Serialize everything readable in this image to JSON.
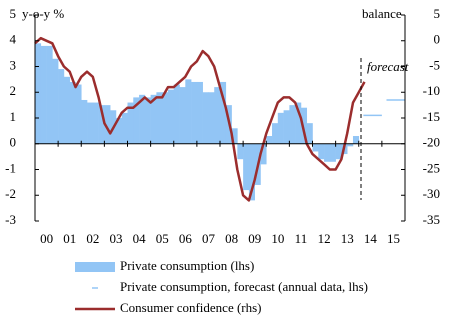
{
  "chart_data": {
    "type": "combo",
    "y_label": "y-o-y %",
    "y2_label": "balance",
    "annotation": "forecast",
    "xlim": [
      2000,
      2016
    ],
    "xticks": [
      {
        "value": 2000,
        "label": "00"
      },
      {
        "value": 2001,
        "label": "01"
      },
      {
        "value": 2002,
        "label": "02"
      },
      {
        "value": 2003,
        "label": "03"
      },
      {
        "value": 2004,
        "label": "04"
      },
      {
        "value": 2005,
        "label": "05"
      },
      {
        "value": 2006,
        "label": "06"
      },
      {
        "value": 2007,
        "label": "07"
      },
      {
        "value": 2008,
        "label": "08"
      },
      {
        "value": 2009,
        "label": "09"
      },
      {
        "value": 2010,
        "label": "10"
      },
      {
        "value": 2011,
        "label": "11"
      },
      {
        "value": 2012,
        "label": "12"
      },
      {
        "value": 2013,
        "label": "13"
      },
      {
        "value": 2014,
        "label": "14"
      },
      {
        "value": 2015,
        "label": "15"
      }
    ],
    "ylim": [
      -3,
      5
    ],
    "yticks": [
      -3,
      -2,
      -1,
      0,
      1,
      2,
      3,
      4,
      5
    ],
    "y2lim": [
      -35,
      5
    ],
    "y2ticks": [
      -35,
      -30,
      -25,
      -20,
      -15,
      -10,
      -5,
      0,
      5
    ],
    "series": [
      {
        "name": "Private consumption (lhs)",
        "type": "bar",
        "color": "#92c5f5",
        "x": [
          2000,
          2000.25,
          2000.5,
          2000.75,
          2001,
          2001.25,
          2001.5,
          2001.75,
          2002,
          2002.25,
          2002.5,
          2002.75,
          2003,
          2003.25,
          2003.5,
          2003.75,
          2004,
          2004.25,
          2004.5,
          2004.75,
          2005,
          2005.25,
          2005.5,
          2005.75,
          2006,
          2006.25,
          2006.5,
          2006.75,
          2007,
          2007.25,
          2007.5,
          2007.75,
          2008,
          2008.25,
          2008.5,
          2008.75,
          2009,
          2009.25,
          2009.5,
          2009.75,
          2010,
          2010.25,
          2010.5,
          2010.75,
          2011,
          2011.25,
          2011.5,
          2011.75,
          2012,
          2012.25,
          2012.5,
          2012.75,
          2013,
          2013.25,
          2013.5,
          2013.75
        ],
        "values": [
          3.9,
          3.8,
          3.8,
          3.3,
          2.9,
          2.6,
          2.4,
          2.3,
          1.7,
          1.6,
          1.6,
          1.5,
          1.5,
          1.3,
          1.0,
          1.2,
          1.6,
          1.8,
          1.9,
          1.8,
          1.9,
          2.0,
          2.0,
          2.1,
          2.3,
          2.2,
          2.5,
          2.4,
          2.4,
          2.0,
          2.0,
          2.2,
          2.4,
          1.5,
          0.6,
          -0.6,
          -1.8,
          -2.2,
          -1.6,
          -0.8,
          0.3,
          0.8,
          1.2,
          1.3,
          1.5,
          1.6,
          1.4,
          0.8,
          -0.3,
          -0.6,
          -0.7,
          -0.7,
          -0.6,
          -0.4,
          -0.1,
          0.3
        ]
      },
      {
        "name": "Private consumption, forecast (annual data, lhs)",
        "type": "step",
        "color": "#92c5f5",
        "x": [
          2014,
          2015
        ],
        "values": [
          1.1,
          1.7
        ]
      },
      {
        "name": "Consumer confidence (rhs)",
        "type": "line",
        "color": "#9b2d2d",
        "axis": "y2",
        "x": [
          2000,
          2000.25,
          2000.5,
          2000.75,
          2001,
          2001.25,
          2001.5,
          2001.75,
          2002,
          2002.25,
          2002.5,
          2002.75,
          2003,
          2003.25,
          2003.5,
          2003.75,
          2004,
          2004.25,
          2004.5,
          2004.75,
          2005,
          2005.25,
          2005.5,
          2005.75,
          2006,
          2006.25,
          2006.5,
          2006.75,
          2007,
          2007.25,
          2007.5,
          2007.75,
          2008,
          2008.25,
          2008.5,
          2008.75,
          2009,
          2009.25,
          2009.5,
          2009.75,
          2010,
          2010.25,
          2010.5,
          2010.75,
          2011,
          2011.25,
          2011.5,
          2011.75,
          2012,
          2012.25,
          2012.5,
          2012.75,
          2013,
          2013.25,
          2013.5,
          2013.75,
          2014,
          2014.25
        ],
        "values": [
          -0.5,
          0.5,
          0,
          -0.5,
          -3,
          -5,
          -6,
          -9,
          -7,
          -6,
          -7,
          -11,
          -16,
          -18,
          -16,
          -14,
          -13,
          -13,
          -12,
          -11,
          -12,
          -11,
          -11,
          -9,
          -9,
          -8,
          -7,
          -5,
          -4,
          -2,
          -3,
          -5,
          -9,
          -13,
          -18,
          -25,
          -30,
          -31,
          -27,
          -22,
          -18,
          -15,
          -12,
          -11,
          -11,
          -12,
          -15,
          -20,
          -22,
          -23,
          -24,
          -25,
          -25,
          -23,
          -18,
          -12,
          -10,
          -8
        ]
      }
    ]
  }
}
